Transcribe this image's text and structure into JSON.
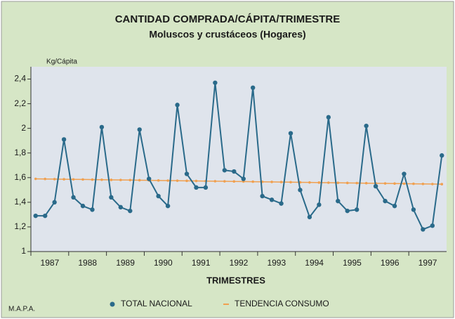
{
  "chart_data": {
    "type": "line",
    "title": "CANTIDAD COMPRADA/CÁPITA/TRIMESTRE",
    "subtitle": "Moluscos y crustáceos (Hogares)",
    "y_label": "Kg/Cápita",
    "x_label": "TRIMESTRES",
    "source": "M.A.P.A.",
    "x": [
      1987.125,
      1987.375,
      1987.625,
      1987.875,
      1988.125,
      1988.375,
      1988.625,
      1988.875,
      1989.125,
      1989.375,
      1989.625,
      1989.875,
      1990.125,
      1990.375,
      1990.625,
      1990.875,
      1991.125,
      1991.375,
      1991.625,
      1991.875,
      1992.125,
      1992.375,
      1992.625,
      1992.875,
      1993.125,
      1993.375,
      1993.625,
      1993.875,
      1994.125,
      1994.375,
      1994.625,
      1994.875,
      1995.125,
      1995.375,
      1995.625,
      1995.875,
      1996.125,
      1996.375,
      1996.625,
      1996.875,
      1997.125,
      1997.375,
      1997.625,
      1997.875
    ],
    "series": [
      {
        "name": "TOTAL NACIONAL",
        "color": "#2a6a8a",
        "values": [
          1.29,
          1.29,
          1.4,
          1.91,
          1.44,
          1.37,
          1.34,
          2.01,
          1.44,
          1.36,
          1.33,
          1.99,
          1.59,
          1.45,
          1.37,
          2.19,
          1.63,
          1.52,
          1.52,
          2.37,
          1.66,
          1.65,
          1.59,
          2.33,
          1.45,
          1.42,
          1.39,
          1.96,
          1.5,
          1.28,
          1.38,
          2.09,
          1.41,
          1.33,
          1.34,
          2.02,
          1.53,
          1.41,
          1.37,
          1.63,
          1.34,
          1.18,
          1.21,
          1.78
        ]
      },
      {
        "name": "TENDENCIA CONSUMO",
        "color": "#f0a050",
        "values": [
          1.59,
          1.589,
          1.588,
          1.587,
          1.586,
          1.585,
          1.584,
          1.583,
          1.582,
          1.581,
          1.58,
          1.579,
          1.578,
          1.577,
          1.576,
          1.575,
          1.574,
          1.573,
          1.572,
          1.571,
          1.57,
          1.569,
          1.568,
          1.567,
          1.566,
          1.565,
          1.564,
          1.563,
          1.562,
          1.561,
          1.56,
          1.559,
          1.558,
          1.557,
          1.556,
          1.555,
          1.554,
          1.553,
          1.552,
          1.551,
          1.55,
          1.549,
          1.548,
          1.547
        ]
      }
    ],
    "xlim": [
      1987,
      1998
    ],
    "xticks": [
      1987,
      1988,
      1989,
      1990,
      1991,
      1992,
      1993,
      1994,
      1995,
      1996,
      1997
    ],
    "ylim": [
      1,
      2.5
    ],
    "yticks": [
      1,
      {
        "value": 1.2,
        "label": "1,2"
      },
      {
        "value": 1.4,
        "label": "1,4"
      },
      {
        "value": 1.6,
        "label": "1,6"
      },
      {
        "value": 1.8,
        "label": "1,8"
      },
      2,
      {
        "value": 2.2,
        "label": "2,2"
      },
      {
        "value": 2.4,
        "label": "2,4"
      }
    ]
  }
}
